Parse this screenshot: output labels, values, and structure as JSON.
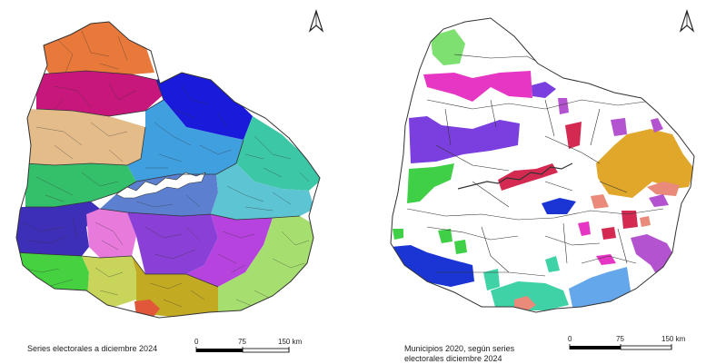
{
  "left_map": {
    "caption": "Series electorales a diciembre 2024",
    "scale": {
      "labels": [
        "0",
        "75",
        "150 km"
      ]
    },
    "north_arrow": "north-arrow-icon",
    "colors": {
      "orange": "#e8793a",
      "magenta": "#c8177c",
      "blue": "#1a1adb",
      "tan": "#e3bc8a",
      "sky": "#3f9fdf",
      "green": "#34c06a",
      "teal": "#3cc7a7",
      "steel": "#5c7fd0",
      "cyan": "#5cc4d2",
      "indigo": "#3d2fb8",
      "pink": "#e87adb",
      "purple": "#8a3fd6",
      "violet": "#b743de",
      "lightgreen": "#a6de70",
      "brightgreen": "#46d240",
      "olive": "#c8d45a",
      "mustard": "#c2aa23",
      "red": "#e0573a"
    }
  },
  "right_map": {
    "caption_lines": [
      "Municipios 2020, según series",
      "electorales diciembre 2024"
    ],
    "scale": {
      "labels": [
        "0",
        "75",
        "150 km"
      ]
    },
    "north_arrow": "north-arrow-icon",
    "colors": {
      "pink": "#e636c4",
      "violet": "#7b3fe0",
      "gold": "#e0a72a",
      "crimson": "#d42a52",
      "blue": "#1b34d4",
      "green": "#40d048",
      "teal": "#3fd2a6",
      "sky": "#64a7ea",
      "salmon": "#ea8a7a",
      "orchid": "#b453cf",
      "lime": "#7de070"
    }
  }
}
